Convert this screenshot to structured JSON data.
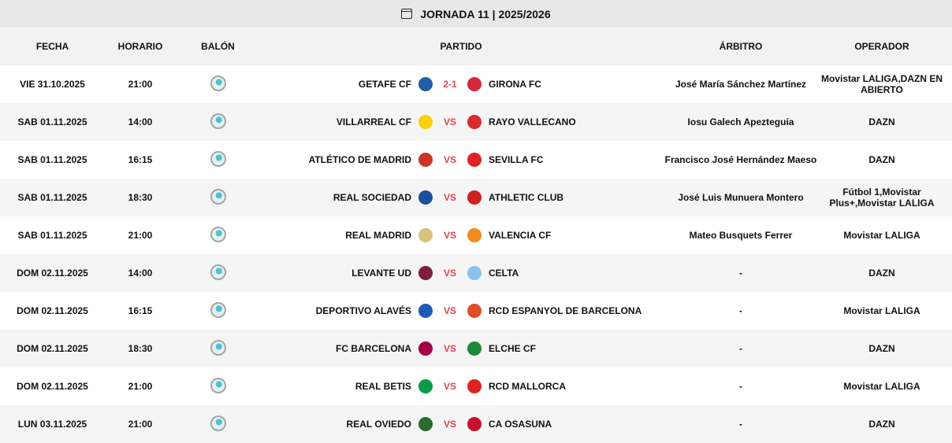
{
  "header": {
    "title": "JORNADA 11 | 2025/2026",
    "icon": "calendar-icon"
  },
  "columns": {
    "fecha": "FECHA",
    "horario": "HORARIO",
    "balon": "BALÓN",
    "partido": "PARTIDO",
    "arbitro": "ÁRBITRO",
    "operador": "OPERADOR"
  },
  "matches": [
    {
      "fecha": "VIE 31.10.2025",
      "horario": "21:00",
      "home": "GETAFE CF",
      "score": "2-1",
      "away": "GIRONA FC",
      "arbitro": "José María Sánchez Martínez",
      "operador": "Movistar LALIGA,DAZN EN ABIERTO",
      "hc": "#1f5fa8",
      "ac": "#d6283a"
    },
    {
      "fecha": "SAB 01.11.2025",
      "horario": "14:00",
      "home": "VILLARREAL CF",
      "score": "VS",
      "away": "RAYO VALLECANO",
      "arbitro": "Iosu Galech Apezteguía",
      "operador": "DAZN",
      "hc": "#f5d20a",
      "ac": "#d82b2b"
    },
    {
      "fecha": "SAB 01.11.2025",
      "horario": "16:15",
      "home": "ATLÉTICO DE MADRID",
      "score": "VS",
      "away": "SEVILLA FC",
      "arbitro": "Francisco José Hernández Maeso",
      "operador": "DAZN",
      "hc": "#cb3524",
      "ac": "#d22"
    },
    {
      "fecha": "SAB 01.11.2025",
      "horario": "18:30",
      "home": "REAL SOCIEDAD",
      "score": "VS",
      "away": "ATHLETIC CLUB",
      "arbitro": "José Luis Munuera Montero",
      "operador": "Fútbol 1,Movistar Plus+,Movistar LALIGA",
      "hc": "#1b4f9c",
      "ac": "#c22"
    },
    {
      "fecha": "SAB 01.11.2025",
      "horario": "21:00",
      "home": "REAL MADRID",
      "score": "VS",
      "away": "VALENCIA CF",
      "arbitro": "Mateo Busquets Ferrer",
      "operador": "Movistar LALIGA",
      "hc": "#d9c27a",
      "ac": "#f08a1c"
    },
    {
      "fecha": "DOM 02.11.2025",
      "horario": "14:00",
      "home": "LEVANTE UD",
      "score": "VS",
      "away": "CELTA",
      "arbitro": "-",
      "operador": "DAZN",
      "hc": "#7a1f3d",
      "ac": "#8ac3ee"
    },
    {
      "fecha": "DOM 02.11.2025",
      "horario": "16:15",
      "home": "DEPORTIVO ALAVÉS",
      "score": "VS",
      "away": "RCD ESPANYOL DE BARCELONA",
      "arbitro": "-",
      "operador": "Movistar LALIGA",
      "hc": "#1c5bb8",
      "ac": "#e04b2a"
    },
    {
      "fecha": "DOM 02.11.2025",
      "horario": "18:30",
      "home": "FC BARCELONA",
      "score": "VS",
      "away": "ELCHE CF",
      "arbitro": "-",
      "operador": "DAZN",
      "hc": "#a50044",
      "ac": "#1d8a3a"
    },
    {
      "fecha": "DOM 02.11.2025",
      "horario": "21:00",
      "home": "REAL BETIS",
      "score": "VS",
      "away": "RCD MALLORCA",
      "arbitro": "-",
      "operador": "Movistar LALIGA",
      "hc": "#0a9a4a",
      "ac": "#d22"
    },
    {
      "fecha": "LUN 03.11.2025",
      "horario": "21:00",
      "home": "REAL OVIEDO",
      "score": "VS",
      "away": "CA OSASUNA",
      "arbitro": "-",
      "operador": "DAZN",
      "hc": "#2d6a2f",
      "ac": "#c8102e"
    }
  ],
  "colors": {
    "score": "#e0444b",
    "header_bg": "#e8e8e8",
    "alt_row": "#f5f5f5"
  }
}
